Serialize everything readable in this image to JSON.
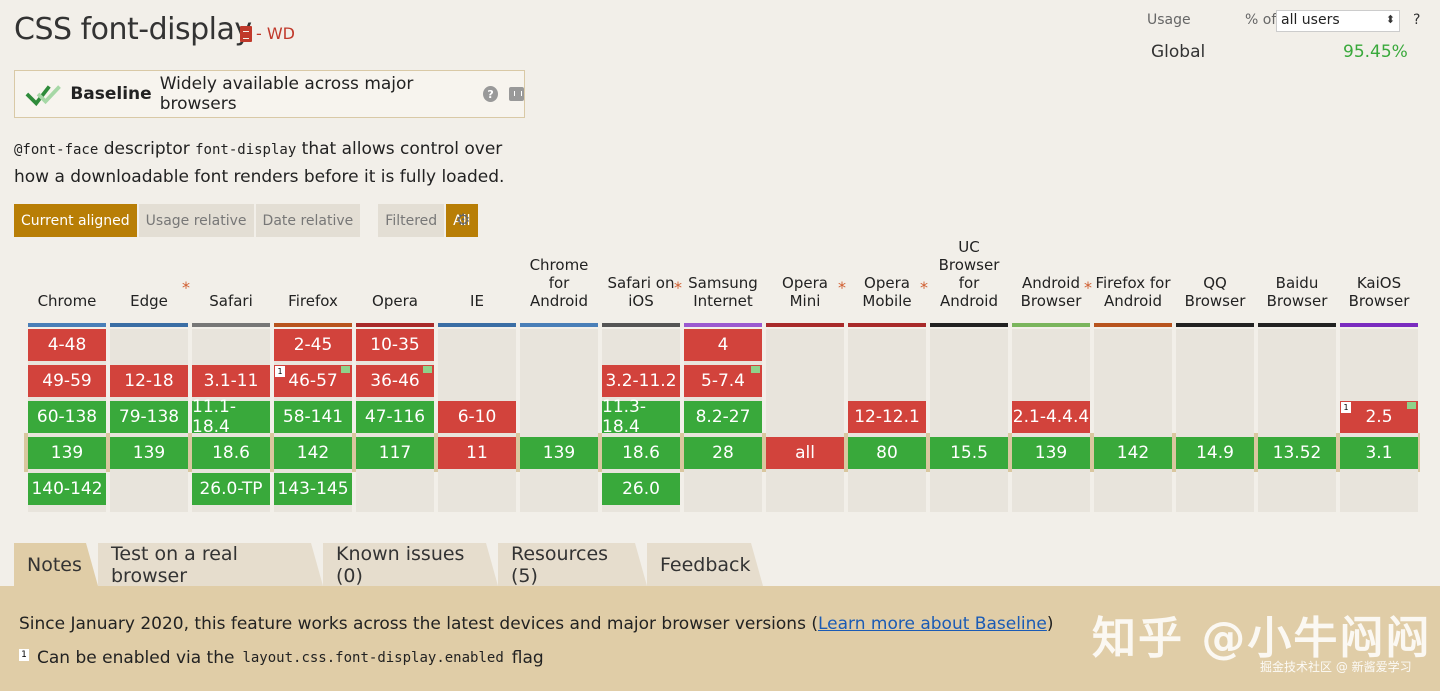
{
  "header": {
    "title": "CSS font-display",
    "spec_status": "- WD"
  },
  "baseline": {
    "label": "Baseline",
    "description": "Widely available across major browsers",
    "help": "?"
  },
  "description": {
    "code1": "@font-face",
    "text1": " descriptor ",
    "code2": "font-display",
    "text2": " that allows control over how a downloadable font renders before it is fully loaded."
  },
  "view_options": {
    "current_aligned": "Current aligned",
    "usage_relative": "Usage relative",
    "date_relative": "Date relative",
    "filtered": "Filtered",
    "all": "All"
  },
  "usage": {
    "label": "Usage",
    "of": "% of",
    "selected": "all users",
    "help": "?",
    "region": "Global",
    "percent": "95.45%"
  },
  "browsers": [
    {
      "name": "Chrome",
      "star": "",
      "color": "#4a7fb8",
      "cells": [
        [
          "4-48",
          "n",
          0,
          0,
          ""
        ],
        [
          "49-59",
          "n",
          1,
          0,
          ""
        ],
        [
          "60-138",
          "y",
          2,
          0,
          ""
        ],
        [
          "139",
          "y",
          3,
          0,
          ""
        ],
        [
          "140-142",
          "y",
          4,
          0,
          ""
        ]
      ]
    },
    {
      "name": "Edge",
      "star": "*",
      "color": "#3b6ea5",
      "cells": [
        [
          "12-18",
          "n",
          1,
          0,
          ""
        ],
        [
          "79-138",
          "y",
          2,
          0,
          ""
        ],
        [
          "139",
          "y",
          3,
          0,
          ""
        ]
      ]
    },
    {
      "name": "Safari",
      "star": "",
      "color": "#777777",
      "cells": [
        [
          "3.1-11",
          "n",
          1,
          0,
          ""
        ],
        [
          "11.1-18.4",
          "y",
          2,
          0,
          ""
        ],
        [
          "18.6",
          "y",
          3,
          0,
          ""
        ],
        [
          "26.0-TP",
          "y",
          4,
          0,
          ""
        ]
      ]
    },
    {
      "name": "Firefox",
      "star": "",
      "color": "#b8541e",
      "cells": [
        [
          "2-45",
          "n",
          0,
          0,
          ""
        ],
        [
          "46-57",
          "n",
          1,
          1,
          "1"
        ],
        [
          "58-141",
          "y",
          2,
          0,
          ""
        ],
        [
          "142",
          "y",
          3,
          0,
          ""
        ],
        [
          "143-145",
          "y",
          4,
          0,
          ""
        ]
      ]
    },
    {
      "name": "Opera",
      "star": "",
      "color": "#a82a2a",
      "cells": [
        [
          "10-35",
          "n",
          0,
          0,
          ""
        ],
        [
          "36-46",
          "n",
          1,
          1,
          ""
        ],
        [
          "47-116",
          "y",
          2,
          0,
          ""
        ],
        [
          "117",
          "y",
          3,
          0,
          ""
        ]
      ]
    },
    {
      "name": "IE",
      "star": "",
      "color": "#3b6ea5",
      "cells": [
        [
          "6-10",
          "n",
          2,
          0,
          ""
        ],
        [
          "11",
          "n",
          3,
          0,
          ""
        ]
      ]
    },
    {
      "name": "Chrome for Android",
      "star": "",
      "color": "#4a7fb8",
      "cells": [
        [
          "139",
          "y",
          3,
          0,
          ""
        ]
      ]
    },
    {
      "name": "Safari on iOS",
      "star": "*",
      "color": "#555555",
      "cells": [
        [
          "3.2-11.2",
          "n",
          1,
          0,
          ""
        ],
        [
          "11.3-18.4",
          "y",
          2,
          0,
          ""
        ],
        [
          "18.6",
          "y",
          3,
          0,
          ""
        ],
        [
          "26.0",
          "y",
          4,
          0,
          ""
        ]
      ]
    },
    {
      "name": "Samsung Internet",
      "star": "",
      "color": "#9b59d0",
      "cells": [
        [
          "4",
          "n",
          0,
          0,
          ""
        ],
        [
          "5-7.4",
          "n",
          1,
          1,
          ""
        ],
        [
          "8.2-27",
          "y",
          2,
          0,
          ""
        ],
        [
          "28",
          "y",
          3,
          0,
          ""
        ]
      ]
    },
    {
      "name": "Opera Mini",
      "star": "*",
      "color": "#a82a2a",
      "cells": [
        [
          "all",
          "n",
          3,
          0,
          ""
        ]
      ]
    },
    {
      "name": "Opera Mobile",
      "star": "*",
      "color": "#a82a2a",
      "cells": [
        [
          "12-12.1",
          "n",
          2,
          0,
          ""
        ],
        [
          "80",
          "y",
          3,
          0,
          ""
        ]
      ]
    },
    {
      "name": "UC Browser for Android",
      "star": "",
      "color": "#222222",
      "cells": [
        [
          "15.5",
          "y",
          3,
          0,
          ""
        ]
      ]
    },
    {
      "name": "Android Browser",
      "star": "*",
      "color": "#7ab55c",
      "cells": [
        [
          "2.1-4.4.4",
          "n",
          2,
          0,
          ""
        ],
        [
          "139",
          "y",
          3,
          0,
          ""
        ]
      ]
    },
    {
      "name": "Firefox for Android",
      "star": "",
      "color": "#b8541e",
      "cells": [
        [
          "142",
          "y",
          3,
          0,
          ""
        ]
      ]
    },
    {
      "name": "QQ Browser",
      "star": "",
      "color": "#222222",
      "cells": [
        [
          "14.9",
          "y",
          3,
          0,
          ""
        ]
      ]
    },
    {
      "name": "Baidu Browser",
      "star": "",
      "color": "#222222",
      "cells": [
        [
          "13.52",
          "y",
          3,
          0,
          ""
        ]
      ]
    },
    {
      "name": "KaiOS Browser",
      "star": "",
      "color": "#7a2bbf",
      "cells": [
        [
          "2.5",
          "n",
          2,
          1,
          "1"
        ],
        [
          "3.1",
          "y",
          3,
          0,
          ""
        ]
      ]
    }
  ],
  "tabs": [
    {
      "label": "Notes",
      "active": true
    },
    {
      "label": "Test on a real browser",
      "active": false
    },
    {
      "label": "Known issues (0)",
      "active": false
    },
    {
      "label": "Resources (5)",
      "active": false
    },
    {
      "label": "Feedback",
      "active": false
    }
  ],
  "notes": {
    "baseline_text": "Since January 2020, this feature works across the latest devices and major browser versions (",
    "baseline_link": "Learn more about Baseline",
    "baseline_end": ")",
    "footnote_num": "1",
    "footnote_text1": "Can be enabled via the",
    "footnote_code": "layout.css.font-display.enabled",
    "footnote_text2": "flag"
  },
  "watermark": {
    "main": "知乎 @小牛闷闷",
    "sub": "掘金技术社区 @ 新酱爱学习"
  }
}
